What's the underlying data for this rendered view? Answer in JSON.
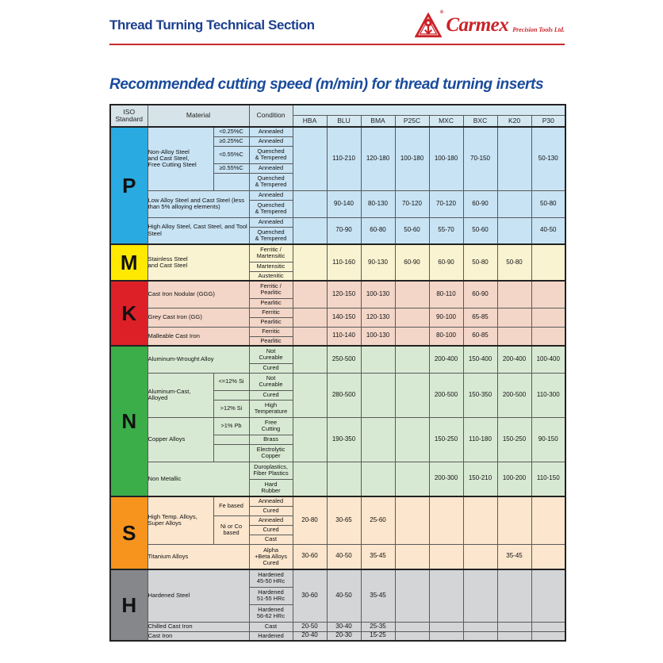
{
  "header": {
    "title": "Thread Turning Technical Section",
    "brand_name": "Carmex",
    "brand_suffix": "Precision Tools Ltd.",
    "registered_mark": "®"
  },
  "page_title": "Recommended cutting speed (m/min) for thread turning inserts",
  "colors": {
    "accent_red": "#c62a30",
    "navy_title": "#1c3f8f",
    "brand_red": "#cc2229"
  },
  "table": {
    "corner_headers": [
      "ISO Standard",
      "Material",
      "Condition"
    ],
    "grade_columns": [
      "HBA",
      "BLU",
      "BMA",
      "P25C",
      "MXC",
      "BXC",
      "K20",
      "P30"
    ],
    "sections": [
      {
        "letter": "P",
        "letter_bg": "#29abe2",
        "row_bg": "#c8e3f4",
        "groups": [
          {
            "material": "Non-Alloy Steel\nand Cast Steel,\nFree Cutting Steel",
            "subs": [
              {
                "label": "<0.25%C",
                "rows": 1
              },
              {
                "label": "≥0.25%C",
                "rows": 1
              },
              {
                "label": "<0.55%C",
                "rows": 1
              },
              {
                "label": "≥0.55%C",
                "rows": 1
              },
              {
                "label": "",
                "rows": 1
              }
            ],
            "conditions": [
              "Annealed",
              "Annealed",
              "Quenched\n& Tempered",
              "Annealed",
              "Quenched\n& Tempered"
            ],
            "values": [
              "",
              "110-210",
              "120-180",
              "100-180",
              "100-180",
              "70-150",
              "",
              "50-130"
            ]
          },
          {
            "material": "Low Alloy Steel and Cast Steel (less than 5% alloying elements)",
            "subs": null,
            "conditions": [
              "Annealed",
              "Quenched\n& Tempered"
            ],
            "values": [
              "",
              "90-140",
              "80-130",
              "70-120",
              "70-120",
              "60-90",
              "",
              "50-80"
            ]
          },
          {
            "material": "High Alloy Steel, Cast Steel, and Tool Steel",
            "subs": null,
            "conditions": [
              "Annealed",
              "Quenched\n& Tempered"
            ],
            "values": [
              "",
              "70-90",
              "60-80",
              "50-60",
              "55-70",
              "50-60",
              "",
              "40-50"
            ]
          }
        ]
      },
      {
        "letter": "M",
        "letter_bg": "#ffe900",
        "row_bg": "#faf3d1",
        "groups": [
          {
            "material": "Stainless Steel\nand Cast Steel",
            "subs": null,
            "conditions": [
              "Ferritic /\nMartensitic",
              "Martensitic",
              "Austenitic"
            ],
            "values": [
              "",
              "110-160",
              "90-130",
              "60-90",
              "60-90",
              "50-80",
              "50-80",
              ""
            ]
          }
        ]
      },
      {
        "letter": "K",
        "letter_bg": "#dd2028",
        "row_bg": "#f3d6c8",
        "groups": [
          {
            "material": "Cast Iron Nodular (GGG)",
            "subs": null,
            "conditions": [
              "Ferritic /\nPearlitic",
              "Pearlitic"
            ],
            "values": [
              "",
              "120-150",
              "100-130",
              "",
              "80-110",
              "60-90",
              "",
              ""
            ]
          },
          {
            "material": "Grey Cast Iron (GG)",
            "subs": null,
            "conditions": [
              "Ferritic",
              "Pearlitic"
            ],
            "values": [
              "",
              "140-150",
              "120-130",
              "",
              "90-100",
              "65-85",
              "",
              ""
            ]
          },
          {
            "material": "Malleable Cast Iron",
            "subs": null,
            "conditions": [
              "Ferritic",
              "Pearlitic"
            ],
            "values": [
              "",
              "110-140",
              "100-130",
              "",
              "80-100",
              "60-85",
              "",
              ""
            ]
          }
        ]
      },
      {
        "letter": "N",
        "letter_bg": "#3bae49",
        "row_bg": "#d8e9d3",
        "groups": [
          {
            "material": "Aluminum-Wrought Alloy",
            "subs": null,
            "conditions": [
              "Not\nCureable",
              "Cured"
            ],
            "values": [
              "",
              "250-500",
              "",
              "",
              "200-400",
              "150-400",
              "200-400",
              "100-400"
            ]
          },
          {
            "material": "Aluminum-Cast,\nAlloyed",
            "subs": [
              {
                "label": "<=12% Si",
                "rows": 1
              },
              {
                "label": "",
                "rows": 1
              },
              {
                "label": ">12% Si",
                "rows": 1
              }
            ],
            "conditions": [
              "Not\nCureable",
              "Cured",
              "High\nTemperature"
            ],
            "values": [
              "",
              "280-500",
              "",
              "",
              "200-500",
              "150-350",
              "200-500",
              "110-300"
            ]
          },
          {
            "material": "Copper Alloys",
            "subs": [
              {
                "label": ">1% Pb",
                "rows": 1
              },
              {
                "label": "",
                "rows": 1
              },
              {
                "label": "",
                "rows": 1
              }
            ],
            "conditions": [
              "Free\nCutting",
              "Brass",
              "Electrolytic\nCopper"
            ],
            "values": [
              "",
              "190-350",
              "",
              "",
              "150-250",
              "110-180",
              "150-250",
              "90-150"
            ]
          },
          {
            "material": "Non Metallic",
            "subs": null,
            "conditions": [
              "Duroplastics,\nFiber Plastics",
              "Hard\nRubber"
            ],
            "values": [
              "",
              "",
              "",
              "",
              "200-300",
              "150-210",
              "100-200",
              "110-150"
            ]
          }
        ]
      },
      {
        "letter": "S",
        "letter_bg": "#f7941e",
        "row_bg": "#fce6cd",
        "groups": [
          {
            "material": "High Temp. Alloys,\nSuper Alloys",
            "subs": [
              {
                "label": "Fe based",
                "rows": 2
              },
              {
                "label": "Ni or Co\nbased",
                "rows": 3
              }
            ],
            "conditions": [
              "Annealed",
              "Cured",
              "Annealed",
              "Cured",
              "Cast"
            ],
            "values": [
              "20-80",
              "30-65",
              "25-60",
              "",
              "",
              "",
              "",
              ""
            ]
          },
          {
            "material": "Titanium Alloys",
            "subs": null,
            "conditions": [
              "Alpha\n+Beta Alloys\nCured"
            ],
            "values": [
              "30-60",
              "40-50",
              "35-45",
              "",
              "",
              "",
              "35-45",
              ""
            ]
          }
        ]
      },
      {
        "letter": "H",
        "letter_bg": "#85878a",
        "row_bg": "#d3d5d7",
        "groups": [
          {
            "material": "Hardened Steel",
            "subs": null,
            "conditions": [
              "Hardened\n45-50 HRc",
              "Hardened\n51-55 HRc",
              "Hardened\n56-62 HRc"
            ],
            "values": [
              "30-60",
              "40-50",
              "35-45",
              "",
              "",
              "",
              "",
              ""
            ]
          },
          {
            "material": "Chilled Cast Iron",
            "subs": null,
            "conditions": [
              "Cast"
            ],
            "values": [
              "20-50",
              "30-40",
              "25-35",
              "",
              "",
              "",
              "",
              ""
            ]
          },
          {
            "material": "Cast Iron",
            "subs": null,
            "conditions": [
              "Hardened"
            ],
            "values": [
              "20-40",
              "20-30",
              "15-25",
              "",
              "",
              "",
              "",
              ""
            ]
          }
        ]
      }
    ]
  }
}
